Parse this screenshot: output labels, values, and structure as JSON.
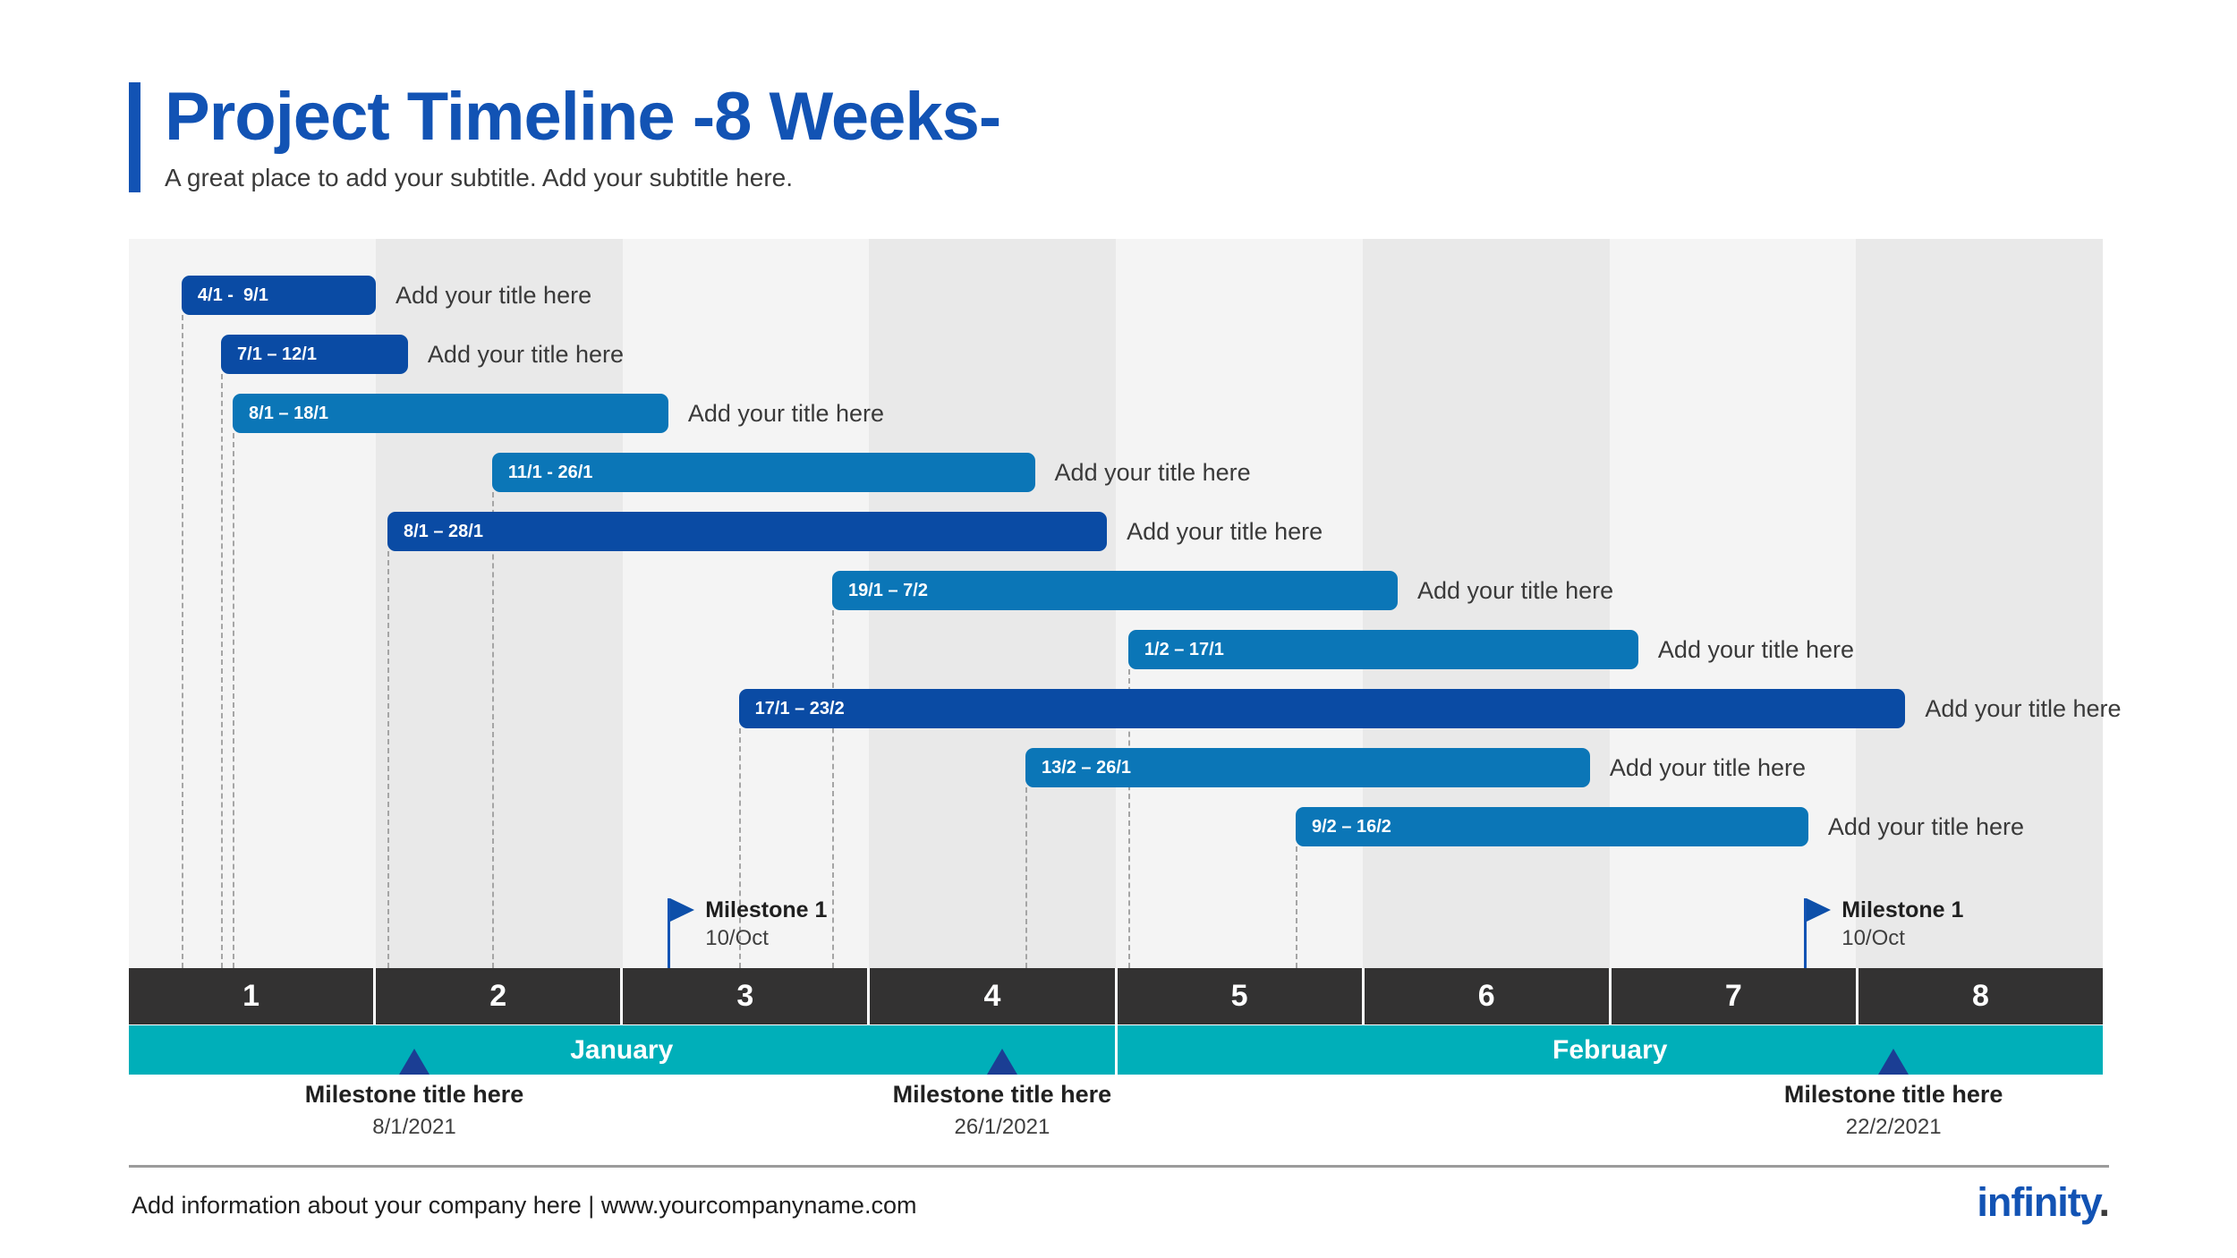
{
  "page": {
    "title": "Project Timeline -8 Weeks-",
    "subtitle": "A great place to add your subtitle. Add your subtitle here."
  },
  "footer": {
    "info": "Add information about your company here | www.yourcompanyname.com",
    "logo_text": "infinity",
    "logo_dot": "."
  },
  "colors": {
    "accent_blue": "#1253b4",
    "bar_dark_blue": "#0a4ba4",
    "bar_light_blue": "#0b76b7",
    "week_band": "#333232",
    "month_band_teal": "#00afb9",
    "milestone_triangle_navy": "#1b3e94",
    "stripe_light": "#f4f4f4",
    "stripe_gray": "#e9e9e9"
  },
  "chart_data": {
    "type": "bar",
    "variant": "gantt-project-timeline",
    "title": "Project Timeline -8 Weeks-",
    "x_axis": {
      "unit": "weeks",
      "range": [
        1,
        8
      ],
      "grid": "alternating-columns"
    },
    "weeks": [
      "1",
      "2",
      "3",
      "4",
      "5",
      "6",
      "7",
      "8"
    ],
    "months": [
      {
        "label": "January",
        "weeks": "1-4"
      },
      {
        "label": "February",
        "weeks": "5-8"
      }
    ],
    "tasks": [
      {
        "dates": "4/1 -  9/1",
        "title": "Add your title here",
        "row": 0,
        "start_pct": 2.67,
        "width_pct": 9.84,
        "shade": "dark"
      },
      {
        "dates": "7/1 – 12/1",
        "title": "Add your title here",
        "row": 1,
        "start_pct": 4.67,
        "width_pct": 9.47,
        "shade": "dark"
      },
      {
        "dates": "8/1 – 18/1",
        "title": "Add your title here",
        "row": 2,
        "start_pct": 5.26,
        "width_pct": 22.07,
        "shade": "light"
      },
      {
        "dates": "11/1 - 26/1",
        "title": "Add your title here",
        "row": 3,
        "start_pct": 18.4,
        "width_pct": 27.5,
        "shade": "light"
      },
      {
        "dates": "8/1 – 28/1",
        "title": "Add your title here",
        "row": 4,
        "start_pct": 13.1,
        "width_pct": 36.45,
        "shade": "dark"
      },
      {
        "dates": "19/1 – 7/2",
        "title": "Add your title here",
        "row": 5,
        "start_pct": 35.63,
        "width_pct": 28.65,
        "shade": "light"
      },
      {
        "dates": "1/2 – 17/1",
        "title": "Add your title here",
        "row": 6,
        "start_pct": 50.63,
        "width_pct": 25.84,
        "shade": "light"
      },
      {
        "dates": "17/1 – 23/2",
        "title": "Add your title here",
        "row": 7,
        "start_pct": 30.9,
        "width_pct": 59.1,
        "shade": "dark"
      },
      {
        "dates": "13/2 – 26/1",
        "title": "Add your title here",
        "row": 8,
        "start_pct": 45.42,
        "width_pct": 28.6,
        "shade": "light"
      },
      {
        "dates": "9/2 – 16/2",
        "title": "Add your title here",
        "row": 9,
        "start_pct": 59.11,
        "width_pct": 25.97,
        "shade": "light"
      }
    ],
    "flags": [
      {
        "label": "Milestone 1",
        "date": "10/Oct",
        "x_pct": 27.3
      },
      {
        "label": "Milestone 1",
        "date": "10/Oct",
        "x_pct": 84.87
      }
    ],
    "milestones": [
      {
        "label": "Milestone title here",
        "date": "8/1/2021",
        "x_pct": 14.46
      },
      {
        "label": "Milestone title here",
        "date": "26/1/2021",
        "x_pct": 44.24
      },
      {
        "label": "Milestone title here",
        "date": "22/2/2021",
        "x_pct": 89.4
      }
    ]
  }
}
